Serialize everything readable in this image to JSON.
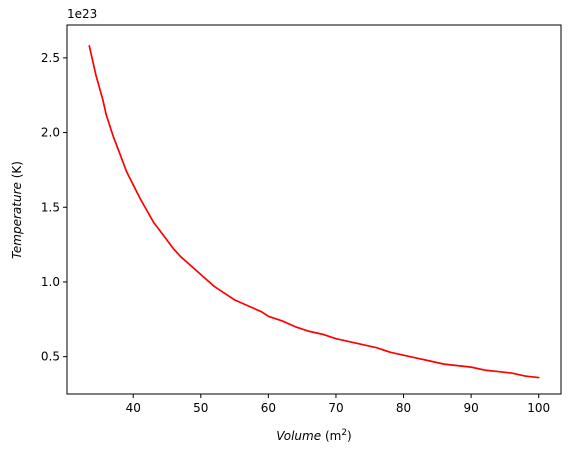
{
  "chart_data": {
    "type": "line",
    "title": "",
    "xlabel": "Volume",
    "xlabel_unit": "(m",
    "xlabel_unit_exp": "2",
    "xlabel_unit_close": ")",
    "ylabel": "Temperature",
    "ylabel_unit": "(K)",
    "y_offset_text": "1e23",
    "xlim": [
      30.2,
      103.3
    ],
    "ylim": [
      0.25,
      2.72
    ],
    "x_ticks": [
      40,
      50,
      60,
      70,
      80,
      90,
      100
    ],
    "x_tick_labels": [
      "40",
      "50",
      "60",
      "70",
      "80",
      "90",
      "100"
    ],
    "y_ticks": [
      0.5,
      1.0,
      1.5,
      2.0,
      2.5
    ],
    "y_tick_labels": [
      "0.5",
      "1.0",
      "1.5",
      "2.0",
      "2.5"
    ],
    "grid": false,
    "legend": "none",
    "series": [
      {
        "color": "#ff0000",
        "x": [
          33.5,
          34.5,
          35.5,
          36.0,
          37.0,
          38.0,
          39.0,
          40.0,
          41.0,
          42.0,
          43.0,
          44.0,
          45.0,
          46.0,
          47.0,
          48.0,
          49.0,
          50.0,
          51.0,
          52.0,
          53.0,
          54.0,
          55.0,
          56.0,
          57.0,
          58.0,
          59.0,
          60.0,
          62.0,
          64.0,
          66.0,
          68.0,
          70.0,
          72.0,
          74.0,
          76.0,
          78.0,
          80.0,
          82.0,
          84.0,
          86.0,
          88.0,
          90.0,
          92.0,
          94.0,
          96.0,
          98.0,
          100.0
        ],
        "y": [
          2.58,
          2.38,
          2.22,
          2.12,
          1.98,
          1.86,
          1.74,
          1.65,
          1.56,
          1.48,
          1.4,
          1.34,
          1.28,
          1.22,
          1.17,
          1.13,
          1.09,
          1.05,
          1.01,
          0.97,
          0.94,
          0.91,
          0.88,
          0.86,
          0.84,
          0.82,
          0.8,
          0.77,
          0.74,
          0.7,
          0.67,
          0.65,
          0.62,
          0.6,
          0.58,
          0.56,
          0.53,
          0.51,
          0.49,
          0.47,
          0.45,
          0.44,
          0.43,
          0.41,
          0.4,
          0.39,
          0.37,
          0.36
        ]
      }
    ]
  }
}
